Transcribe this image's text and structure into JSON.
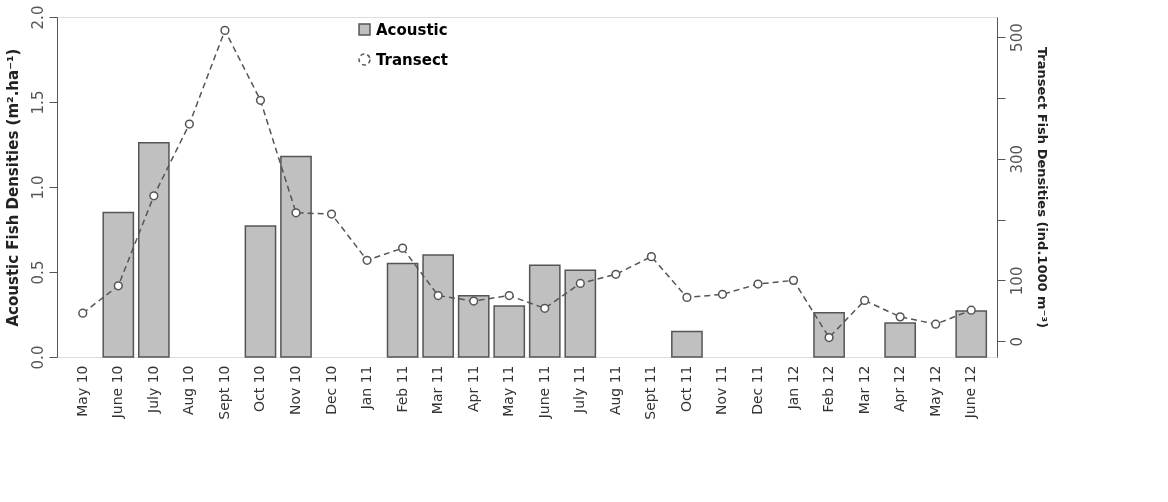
{
  "chart_data": {
    "type": "bar",
    "ylabel": "Acoustic Fish Densities  (m².ha⁻¹)",
    "y2label": "Transect Fish Densities (ind.1000 m⁻³)",
    "categories": [
      "May 10",
      "June 10",
      "July 10",
      "Aug 10",
      "Sept 10",
      "Oct 10",
      "Nov 10",
      "Dec 10",
      "Jan 11",
      "Feb 11",
      "Mar 11",
      "Apr 11",
      "May 11",
      "June 11",
      "July 11",
      "Aug 11",
      "Sept 11",
      "Oct 11",
      "Nov 11",
      "Dec 11",
      "Jan 12",
      "Feb 12",
      "Mar 12",
      "Apr 12",
      "May 12",
      "June 12"
    ],
    "series": [
      {
        "name": "Acoustic",
        "color": "#c0c0c0",
        "values": [
          null,
          0.85,
          1.26,
          null,
          null,
          0.77,
          1.18,
          null,
          null,
          0.55,
          0.6,
          0.36,
          0.3,
          0.54,
          0.51,
          null,
          null,
          0.15,
          null,
          null,
          null,
          0.26,
          null,
          0.2,
          null,
          0.27
        ]
      },
      {
        "name": "Transect",
        "type": "line",
        "axis": "y2",
        "color": "#555555",
        "marker": "circle",
        "line_style": "dashed",
        "values": [
          46,
          91,
          239,
          357,
          511,
          396,
          211,
          209,
          133,
          153,
          75,
          66,
          75,
          54,
          95,
          110,
          139,
          72,
          77,
          94,
          100,
          6,
          67,
          40,
          28,
          51
        ]
      }
    ],
    "ylim": [
      0,
      2.0
    ],
    "yticks": [
      {
        "value": 0,
        "label": "0.0"
      },
      0.5,
      {
        "value": 1,
        "label": "1.0"
      },
      1.5,
      {
        "value": 2,
        "label": "2.0"
      }
    ],
    "y2lim": [
      -26,
      533
    ],
    "y2ticks": [
      0,
      100,
      {
        "value": 200,
        "label": null
      },
      300,
      {
        "value": 400,
        "label": null
      },
      500
    ],
    "grid": false,
    "legend": "top"
  }
}
